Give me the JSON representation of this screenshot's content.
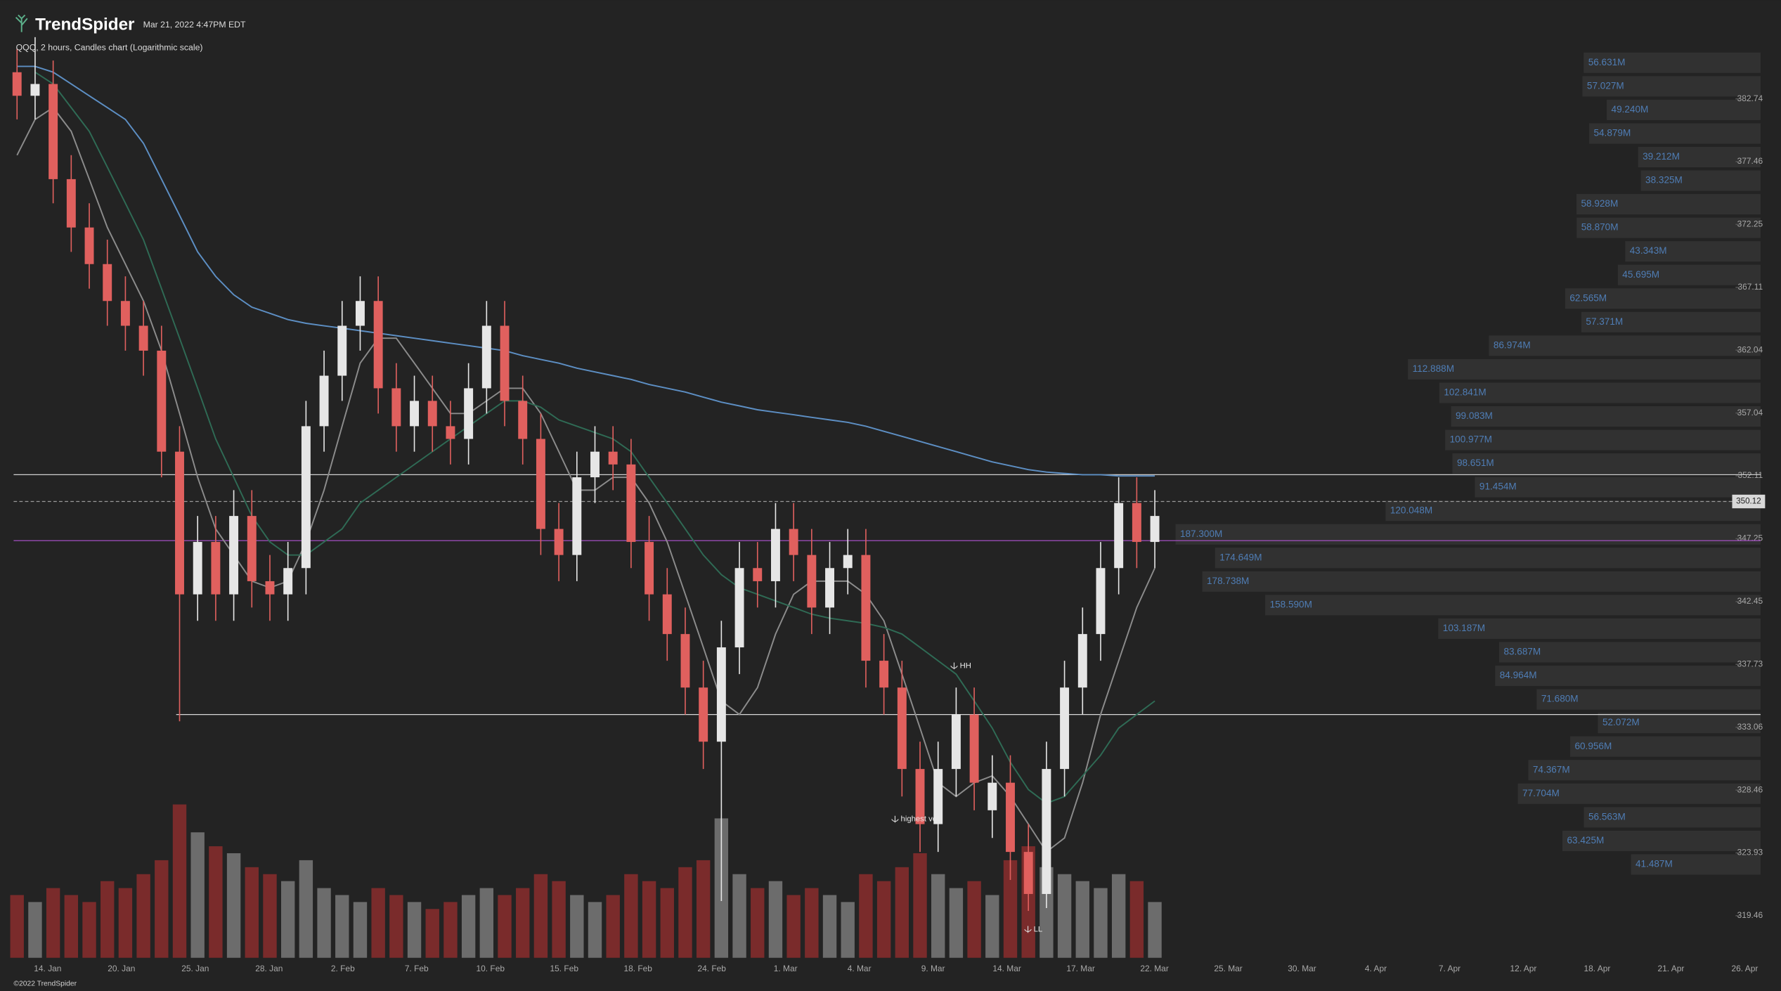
{
  "header": {
    "brand": "TrendSpider",
    "timestamp": "Mar 21, 2022 4:47PM EDT",
    "subtitle": "QQQ, 2 hours, Candles chart (Logarithmic scale)",
    "footer": "©2022 TrendSpider"
  },
  "chart_data": {
    "type": "candlestick",
    "log_scale": true,
    "ylim": [
      316.5,
      390
    ],
    "yticks": [
      382.74,
      377.46,
      372.25,
      367.11,
      362.04,
      357.04,
      352.11,
      347.25,
      342.45,
      337.73,
      333.06,
      328.46,
      323.93,
      319.46
    ],
    "x_labels": [
      "14. Jan",
      "20. Jan",
      "25. Jan",
      "28. Jan",
      "2. Feb",
      "7. Feb",
      "10. Feb",
      "15. Feb",
      "18. Feb",
      "24. Feb",
      "1. Mar",
      "4. Mar",
      "9. Mar",
      "14. Mar",
      "17. Mar",
      "22. Mar",
      "25. Mar",
      "30. Mar",
      "4. Apr",
      "7. Apr",
      "12. Apr",
      "18. Apr",
      "21. Apr",
      "26. Apr"
    ],
    "up_color": "#e6e6e6",
    "down_color": "#e0605e",
    "volume_up_color": "#6c6c6c",
    "volume_down_color": "#7a2b2b",
    "open": [
      385,
      383,
      384,
      376,
      372,
      369,
      366,
      364,
      362,
      354,
      343,
      347,
      343,
      349,
      344,
      343,
      345,
      356,
      360,
      364,
      366,
      359,
      356,
      358,
      356,
      355,
      359,
      364,
      358,
      355,
      348,
      346,
      352,
      354,
      353,
      347,
      343,
      340,
      336,
      332,
      339,
      345,
      344,
      348,
      346,
      342,
      345,
      346,
      338,
      336,
      330,
      326,
      330,
      334,
      327,
      329,
      324,
      321,
      330,
      336,
      340,
      345,
      350,
      347
    ],
    "high": [
      387,
      388,
      386,
      378,
      374,
      371,
      368,
      366,
      364,
      356,
      349,
      349,
      351,
      351,
      346,
      347,
      358,
      362,
      366,
      368,
      368,
      361,
      360,
      360,
      358,
      361,
      366,
      366,
      360,
      357,
      350,
      354,
      356,
      356,
      355,
      349,
      345,
      342,
      338,
      341,
      347,
      347,
      350,
      350,
      348,
      347,
      348,
      348,
      340,
      338,
      332,
      332,
      336,
      336,
      331,
      331,
      326,
      332,
      338,
      342,
      347,
      352,
      352,
      351
    ],
    "low": [
      381,
      381,
      374,
      370,
      367,
      364,
      362,
      360,
      352,
      333.5,
      341,
      341,
      341,
      342,
      341,
      341,
      343,
      354,
      358,
      362,
      357,
      354,
      354,
      354,
      353,
      353,
      357,
      356,
      353,
      346,
      344,
      344,
      350,
      351,
      345,
      341,
      338,
      334,
      330,
      320.5,
      337,
      342,
      342,
      344,
      340,
      340,
      343,
      336,
      334,
      328,
      324,
      324,
      328,
      327,
      325,
      322,
      319.8,
      320,
      328,
      334,
      338,
      343,
      345,
      345
    ],
    "close": [
      383,
      384,
      376,
      372,
      369,
      366,
      364,
      362,
      354,
      343,
      347,
      343,
      349,
      344,
      343,
      345,
      356,
      360,
      364,
      366,
      359,
      356,
      358,
      356,
      355,
      359,
      364,
      358,
      355,
      348,
      346,
      352,
      354,
      353,
      347,
      343,
      340,
      336,
      332,
      339,
      345,
      344,
      348,
      346,
      342,
      345,
      346,
      338,
      336,
      330,
      326,
      330,
      334,
      329,
      329,
      324,
      321,
      330,
      336,
      340,
      345,
      350,
      347,
      349
    ],
    "volume": [
      9,
      8,
      10,
      9,
      8,
      11,
      10,
      12,
      14,
      22,
      18,
      16,
      15,
      13,
      12,
      11,
      14,
      10,
      9,
      8,
      10,
      9,
      8,
      7,
      8,
      9,
      10,
      9,
      10,
      12,
      11,
      9,
      8,
      9,
      12,
      11,
      10,
      13,
      14,
      20,
      12,
      10,
      11,
      9,
      10,
      9,
      8,
      12,
      11,
      13,
      15,
      12,
      10,
      11,
      9,
      14,
      16,
      13,
      12,
      11,
      10,
      12,
      11,
      8
    ],
    "moving_averages": [
      {
        "color": "#8c8c8c",
        "values": [
          378,
          381,
          382,
          380,
          376,
          372,
          369,
          366,
          362,
          357,
          352,
          348,
          346,
          344,
          343.5,
          344,
          347,
          351,
          356,
          361,
          363,
          363,
          361,
          359,
          357,
          357,
          358,
          359,
          359,
          357,
          354,
          351,
          351,
          352,
          352,
          350,
          347,
          343,
          339,
          335,
          334,
          336,
          340,
          343,
          344,
          344,
          344,
          343,
          341,
          337,
          333,
          329,
          328,
          329,
          329.5,
          328,
          326,
          324,
          325,
          329,
          334,
          338,
          342,
          345
        ]
      },
      {
        "color": "#2f6b55",
        "values": [
          null,
          385,
          384,
          382,
          380,
          377,
          374,
          371,
          367,
          363,
          359,
          355,
          352,
          349,
          347,
          346,
          346,
          347,
          348,
          350,
          351,
          352,
          353,
          354,
          355,
          356,
          357,
          358,
          358,
          357.5,
          356.5,
          356,
          355.5,
          355,
          354,
          352,
          350,
          348,
          346,
          344.5,
          343.5,
          343,
          342.5,
          342,
          341.5,
          341.2,
          341,
          340.8,
          340.5,
          340,
          339,
          338,
          337,
          335,
          333,
          330.5,
          328.5,
          327.5,
          328,
          329.5,
          331,
          333,
          334,
          335
        ]
      },
      {
        "color": "#5d8fc4",
        "values": [
          385.5,
          385.5,
          385,
          384,
          383,
          382,
          381,
          379,
          376,
          373,
          370,
          368,
          366.5,
          365.5,
          365,
          364.5,
          364.2,
          364,
          363.8,
          363.6,
          363.4,
          363.2,
          363,
          362.8,
          362.6,
          362.4,
          362.2,
          362,
          361.6,
          361.3,
          361,
          360.6,
          360.3,
          360,
          359.7,
          359.3,
          359,
          358.7,
          358.3,
          357.9,
          357.6,
          357.3,
          357.1,
          356.9,
          356.7,
          356.5,
          356.3,
          356,
          355.6,
          355.2,
          354.8,
          354.4,
          354,
          353.6,
          353.2,
          352.9,
          352.6,
          352.4,
          352.3,
          352.2,
          352.2,
          352.1,
          352.1,
          352.1
        ]
      }
    ],
    "levels": [
      {
        "value": 352.2,
        "color": "#cfcfcf",
        "style": "solid"
      },
      {
        "value": 350.12,
        "color": "#9a9a9a",
        "style": "dashed"
      },
      {
        "value": 347.1,
        "color": "#a24fc0",
        "style": "solid"
      },
      {
        "value": 334.0,
        "color": "#d8d8d8",
        "style": "solid"
      }
    ],
    "last_price": 350.12,
    "annotations": [
      "HH",
      "highest vol.",
      "LL"
    ],
    "volume_profile": {
      "values": [
        56.631,
        57.027,
        49.24,
        54.879,
        39.212,
        38.325,
        58.928,
        58.87,
        43.343,
        45.695,
        62.565,
        57.371,
        86.974,
        112.888,
        102.841,
        99.083,
        100.977,
        98.651,
        91.454,
        120.048,
        187.3,
        174.649,
        178.738,
        158.59,
        103.187,
        83.687,
        84.964,
        71.68,
        52.072,
        60.956,
        74.367,
        77.704,
        56.563,
        63.425,
        41.487
      ],
      "value_labels": [
        "56.631M",
        "57.027M",
        "49.240M",
        "54.879M",
        "39.212M",
        "38.325M",
        "58.928M",
        "58.870M",
        "43.343M",
        "45.695M",
        "62.565M",
        "57.371M",
        "86.974M",
        "112.888M",
        "102.841M",
        "99.083M",
        "100.977M",
        "98.651M",
        "91.454M",
        "120.048M",
        "187.300M",
        "174.649M",
        "178.738M",
        "158.590M",
        "103.187M",
        "83.687M",
        "84.964M",
        "71.680M",
        "52.072M",
        "60.956M",
        "74.367M",
        "77.704M",
        "56.563M",
        "63.425M",
        "41.487M"
      ]
    }
  }
}
